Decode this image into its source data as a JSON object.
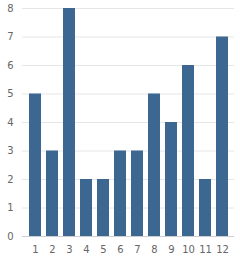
{
  "chart_data": {
    "type": "bar",
    "categories": [
      "1",
      "2",
      "3",
      "4",
      "5",
      "6",
      "7",
      "8",
      "9",
      "10",
      "11",
      "12"
    ],
    "values": [
      5,
      3,
      8,
      2,
      2,
      3,
      3,
      5,
      4,
      6,
      2,
      7
    ],
    "color": "#3b6790",
    "ylim": [
      0,
      8
    ],
    "yticks": [
      0,
      1,
      2,
      3,
      4,
      5,
      6,
      7,
      8
    ],
    "grid": true
  }
}
